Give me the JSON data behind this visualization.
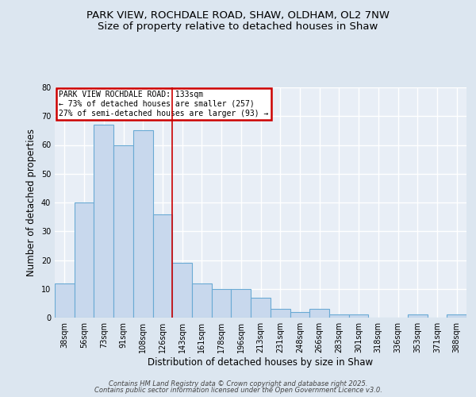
{
  "title1": "PARK VIEW, ROCHDALE ROAD, SHAW, OLDHAM, OL2 7NW",
  "title2": "Size of property relative to detached houses in Shaw",
  "xlabel": "Distribution of detached houses by size in Shaw",
  "ylabel": "Number of detached properties",
  "categories": [
    "38sqm",
    "56sqm",
    "73sqm",
    "91sqm",
    "108sqm",
    "126sqm",
    "143sqm",
    "161sqm",
    "178sqm",
    "196sqm",
    "213sqm",
    "231sqm",
    "248sqm",
    "266sqm",
    "283sqm",
    "301sqm",
    "318sqm",
    "336sqm",
    "353sqm",
    "371sqm",
    "388sqm"
  ],
  "values": [
    12,
    40,
    67,
    60,
    65,
    36,
    19,
    12,
    10,
    10,
    7,
    3,
    2,
    3,
    1,
    1,
    0,
    0,
    1,
    0,
    1
  ],
  "bar_color": "#c8d8ed",
  "bar_edge_color": "#6aaad4",
  "highlight_line_color": "#cc0000",
  "annotation_box_color": "#ffffff",
  "annotation_border_color": "#cc0000",
  "annotation_text_line1": "PARK VIEW ROCHDALE ROAD: 133sqm",
  "annotation_text_line2": "← 73% of detached houses are smaller (257)",
  "annotation_text_line3": "27% of semi-detached houses are larger (93) →",
  "annotation_fontsize": 7.0,
  "ylim": [
    0,
    80
  ],
  "yticks": [
    0,
    10,
    20,
    30,
    40,
    50,
    60,
    70,
    80
  ],
  "background_color": "#dce6f0",
  "plot_bg_color": "#e8eef6",
  "grid_color": "#ffffff",
  "title_fontsize": 9.5,
  "subtitle_fontsize": 9.5,
  "axis_label_fontsize": 8.5,
  "tick_fontsize": 7.0,
  "footer_line1": "Contains HM Land Registry data © Crown copyright and database right 2025.",
  "footer_line2": "Contains public sector information licensed under the Open Government Licence v3.0."
}
